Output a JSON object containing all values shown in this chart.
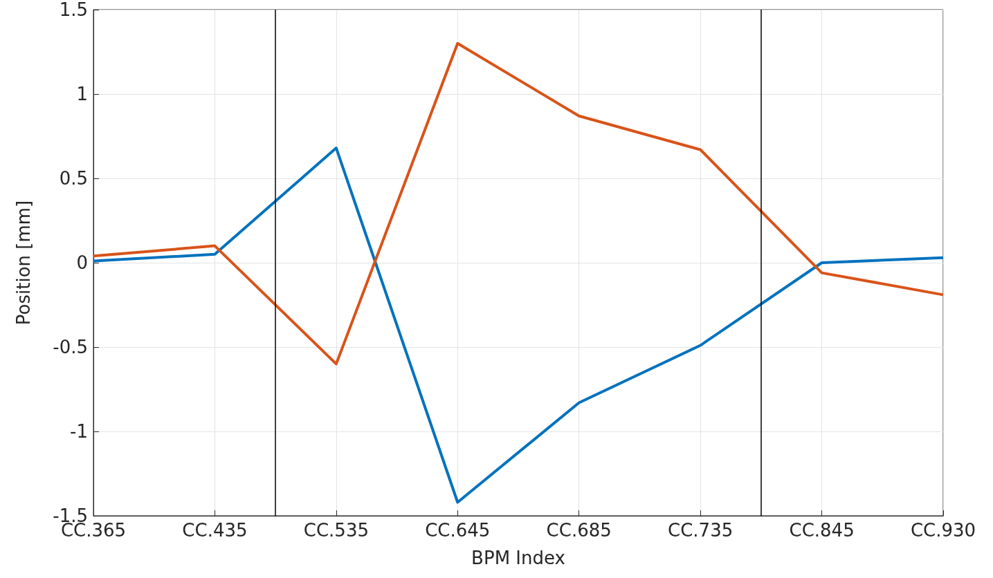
{
  "chart_data": {
    "type": "line",
    "xlabel": "BPM Index",
    "ylabel": "Position [mm]",
    "categories": [
      "CC.365",
      "CC.435",
      "CC.535",
      "CC.645",
      "CC.685",
      "CC.735",
      "CC.845",
      "CC.930"
    ],
    "ylim": [
      -1.5,
      1.5
    ],
    "yticks": [
      -1.5,
      -1,
      -0.5,
      0,
      0.5,
      1,
      1.5
    ],
    "series": [
      {
        "color": "#0072bd",
        "values": [
          0.01,
          0.05,
          0.68,
          -1.42,
          -0.83,
          -0.49,
          0.0,
          0.03
        ]
      },
      {
        "color": "#d95319",
        "values": [
          0.04,
          0.1,
          -0.6,
          1.3,
          0.87,
          0.67,
          -0.06,
          -0.19
        ]
      }
    ],
    "grid": true,
    "marker": "none",
    "line_style": "solid"
  }
}
